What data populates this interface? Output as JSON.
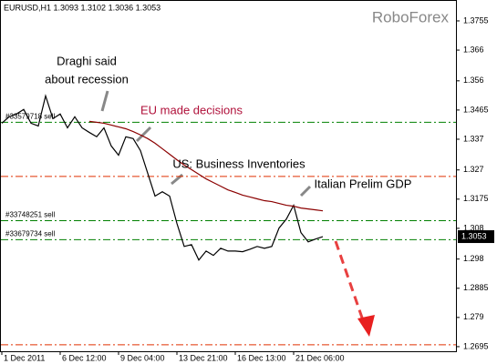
{
  "header": "EURUSD,H1  1.3093 1.3102 1.3036 1.3053",
  "brand": "RoboForex",
  "chart_data": {
    "type": "line",
    "categories": [
      "1 Dec 2011",
      null,
      null,
      null,
      null,
      null,
      null,
      null,
      "6 Dec 12:00",
      null,
      null,
      null,
      null,
      null,
      null,
      null,
      "9 Dec 04:00",
      null,
      null,
      null,
      null,
      null,
      null,
      null,
      "13 Dec 21:00",
      null,
      null,
      null,
      null,
      null,
      null,
      null,
      "16 Dec 13:00",
      null,
      null,
      null,
      null,
      null,
      null,
      null,
      "21 Dec 06:00",
      null,
      null,
      null,
      null
    ],
    "series": [
      {
        "color": "#000000",
        "values": [
          1.3422,
          1.3443,
          1.3452,
          1.3467,
          1.3422,
          1.3413,
          1.3511,
          1.3437,
          1.3452,
          1.3407,
          1.3443,
          1.3407,
          1.3392,
          1.3378,
          1.3407,
          1.3348,
          1.3318,
          1.3378,
          1.3372,
          1.3333,
          1.3259,
          1.3185,
          1.3199,
          1.3185,
          1.3096,
          1.3021,
          1.3027,
          1.2977,
          1.3006,
          1.2992,
          1.3015,
          1.3006,
          1.3006,
          1.3004,
          1.3012,
          1.3021,
          1.3015,
          1.3021,
          1.3081,
          1.311,
          1.3155,
          1.3066,
          1.3036,
          1.3045,
          1.3053
        ]
      },
      {
        "color": "#8b0000",
        "values": [
          null,
          null,
          null,
          null,
          null,
          null,
          null,
          null,
          null,
          null,
          null,
          null,
          1.3428,
          1.3425,
          1.3422,
          1.3416,
          1.341,
          1.3404,
          1.3395,
          1.3384,
          1.3372,
          1.3357,
          1.3339,
          1.3321,
          1.3303,
          1.3286,
          1.3271,
          1.3256,
          1.3241,
          1.3229,
          1.3217,
          1.3205,
          1.3197,
          1.3188,
          1.3182,
          1.3176,
          1.317,
          1.3167,
          1.3161,
          1.3155,
          1.3152,
          1.3146,
          1.3143,
          1.314,
          1.3137
        ]
      }
    ],
    "ylim": [
      1.268,
      1.3823
    ],
    "yticks": [
      1.3755,
      1.366,
      1.356,
      1.3465,
      1.337,
      1.327,
      1.3175,
      1.308,
      1.298,
      1.2885,
      1.279,
      1.2695
    ],
    "levels": [
      {
        "value": 1.3425,
        "label": "#33579718 sell",
        "color": "#008000"
      },
      {
        "value": 1.3249,
        "color": "#e03000"
      },
      {
        "value": 1.3105,
        "label": "#33748251 sell",
        "color": "#008000"
      },
      {
        "value": 1.3043,
        "label": "#33679734 sell",
        "color": "#008000"
      },
      {
        "value": 1.2701,
        "color": "#e03000"
      }
    ],
    "last_price": {
      "value": 1.3053,
      "label": "1.3053"
    },
    "annotations": [
      {
        "text": "Draghi said",
        "color": "#000000"
      },
      {
        "text": "about recession",
        "color": "#000000"
      },
      {
        "text": "EU made decisions",
        "color": "#b0103a"
      },
      {
        "text": "US: Business Inventories",
        "color": "#000000"
      },
      {
        "text": "Italian Prelim GDP",
        "color": "#000000"
      }
    ]
  }
}
